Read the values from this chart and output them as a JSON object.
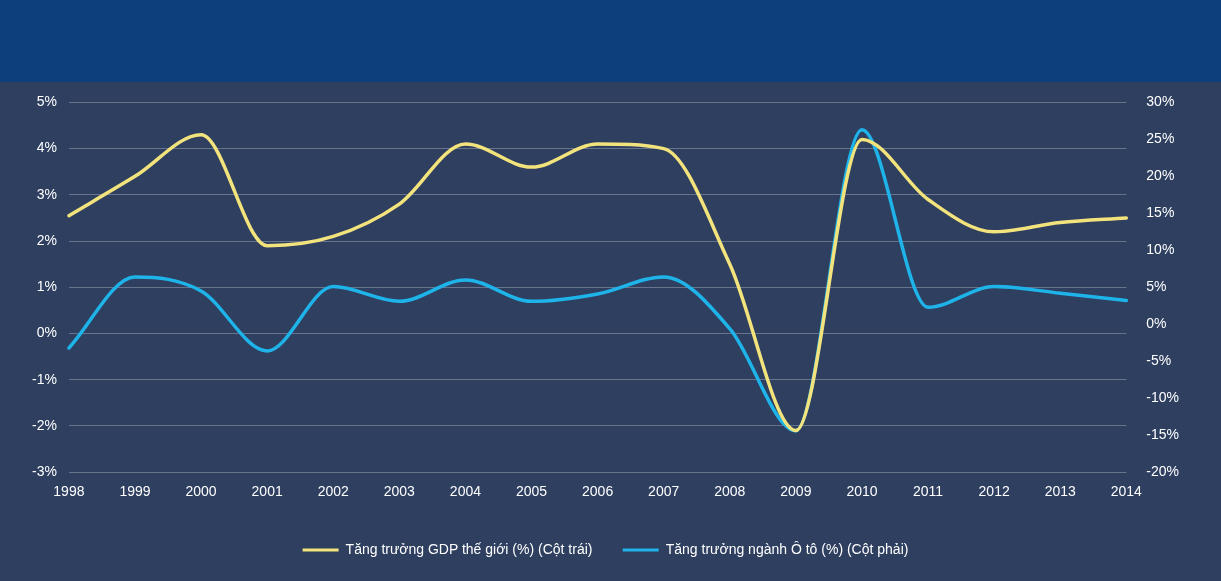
{
  "chart_data": {
    "type": "line",
    "categories": [
      "1998",
      "1999",
      "2000",
      "2001",
      "2002",
      "2003",
      "2004",
      "2005",
      "2006",
      "2007",
      "2008",
      "2009",
      "2010",
      "2011",
      "2012",
      "2013",
      "2014"
    ],
    "series": [
      {
        "name": "Tăng trưởng GDP thế giới (%) (Cột trái)",
        "color": "#f3e37c",
        "values": [
          2.55,
          3.4,
          4.3,
          1.9,
          2.1,
          2.8,
          4.1,
          3.6,
          4.1,
          4.0,
          1.5,
          -2.1,
          4.2,
          2.9,
          2.2,
          2.4,
          2.5
        ]
      },
      {
        "name": "Tăng trưởng ngành Ô tô (%) (Cột phải)",
        "color": "#1eb4ea",
        "axis": "y2",
        "values": [
          -3.2,
          6.4,
          4.5,
          -3.6,
          5.1,
          3.1,
          6.0,
          3.1,
          4.1,
          6.4,
          -0.6,
          -14.4,
          26.3,
          2.3,
          5.1,
          4.2,
          3.2
        ]
      }
    ],
    "ylim": [
      -3,
      5
    ],
    "yticks": [
      {
        "value": -3,
        "label": "-3%"
      },
      {
        "value": -2,
        "label": "-2%"
      },
      {
        "value": -1,
        "label": "-1%"
      },
      {
        "value": 0,
        "label": "0%"
      },
      {
        "value": 1,
        "label": "1%"
      },
      {
        "value": 2,
        "label": "2%"
      },
      {
        "value": 3,
        "label": "3%"
      },
      {
        "value": 4,
        "label": "4%"
      },
      {
        "value": 5,
        "label": "5%"
      }
    ],
    "y2lim": [
      -20,
      30
    ],
    "y2ticks": [
      {
        "value": -20,
        "label": "-20%"
      },
      {
        "value": -15,
        "label": "-15%"
      },
      {
        "value": -10,
        "label": "-10%"
      },
      {
        "value": -5,
        "label": "-5%"
      },
      {
        "value": 0,
        "label": "0%"
      },
      {
        "value": 5,
        "label": "5%"
      },
      {
        "value": 10,
        "label": "10%"
      },
      {
        "value": 15,
        "label": "15%"
      },
      {
        "value": 20,
        "label": "20%"
      },
      {
        "value": 25,
        "label": "25%"
      },
      {
        "value": 30,
        "label": "30%"
      }
    ],
    "grid": "y",
    "legend": "bottom",
    "marker": "none",
    "line_style": "solid"
  }
}
